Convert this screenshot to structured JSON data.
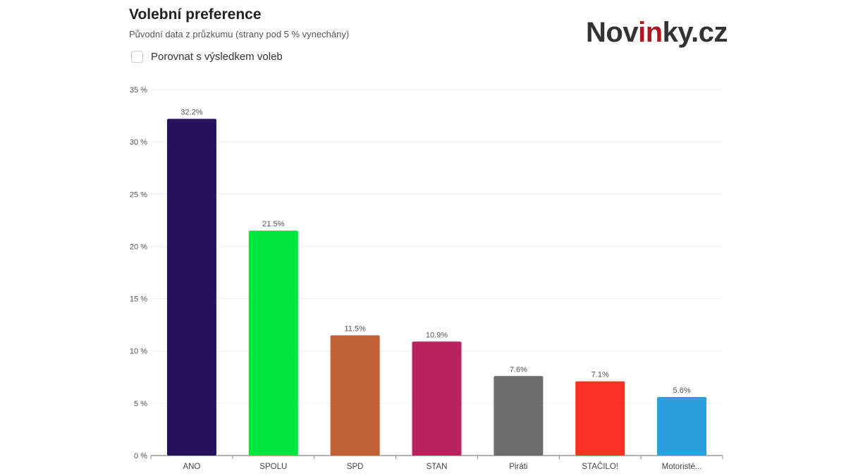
{
  "header": {
    "title": "Volební preference",
    "subtitle": "Původní data z průzkumu (strany pod 5 % vynechány)",
    "compare_checkbox": {
      "label": "Porovnat s výsledkem voleb",
      "checked": false
    }
  },
  "logo": {
    "text": "Novinky.cz",
    "parts": [
      "Nov",
      "in",
      "ky.cz"
    ],
    "accent_color": "#b0171f"
  },
  "chart_data": {
    "type": "bar",
    "categories": [
      "ANO",
      "SPOLU",
      "SPD",
      "STAN",
      "Piráti",
      "STAČILO!",
      "Motoristé..."
    ],
    "values": [
      32.2,
      21.5,
      11.5,
      10.9,
      7.6,
      7.1,
      5.6
    ],
    "value_labels": [
      "32.2%",
      "21.5%",
      "11.5%",
      "10.9%",
      "7.6%",
      "7.1%",
      "5.6%"
    ],
    "colors": [
      "#27115b",
      "#00e641",
      "#c06236",
      "#b8225e",
      "#6e6e6e",
      "#fa3223",
      "#2ca0de"
    ],
    "ylim": [
      0,
      35
    ],
    "yticks": [
      0,
      5,
      10,
      15,
      20,
      25,
      30,
      35
    ],
    "ytick_labels": [
      "0 %",
      "5 %",
      "10 %",
      "15 %",
      "20 %",
      "25 %",
      "30 %",
      "35 %"
    ],
    "grid": true,
    "legend": "none"
  }
}
